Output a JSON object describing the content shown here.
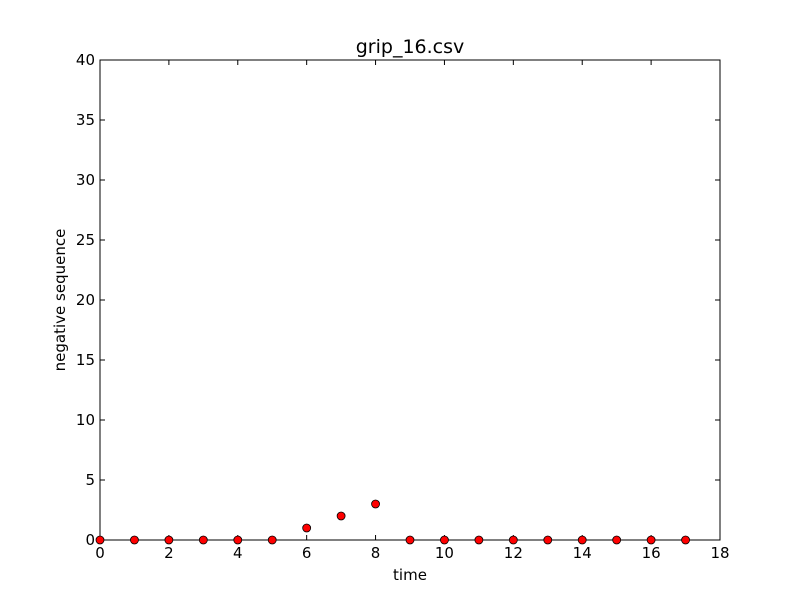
{
  "chart_data": {
    "type": "scatter",
    "title": "grip_16.csv",
    "xlabel": "time",
    "ylabel": "negative sequence",
    "xlim": [
      0,
      18
    ],
    "ylim": [
      0,
      40
    ],
    "x_ticks": [
      0,
      2,
      4,
      6,
      8,
      10,
      12,
      14,
      16,
      18
    ],
    "y_ticks": [
      0,
      5,
      10,
      15,
      20,
      25,
      30,
      35,
      40
    ],
    "grid": false,
    "marker_color": "#ff0000",
    "marker_edge_color": "#000000",
    "x": [
      0,
      1,
      2,
      3,
      4,
      5,
      6,
      7,
      8,
      9,
      10,
      11,
      12,
      13,
      14,
      15,
      16,
      17
    ],
    "y": [
      0,
      0,
      0,
      0,
      0,
      0,
      1,
      2,
      3,
      0,
      0,
      0,
      0,
      0,
      0,
      0,
      0,
      0
    ]
  }
}
